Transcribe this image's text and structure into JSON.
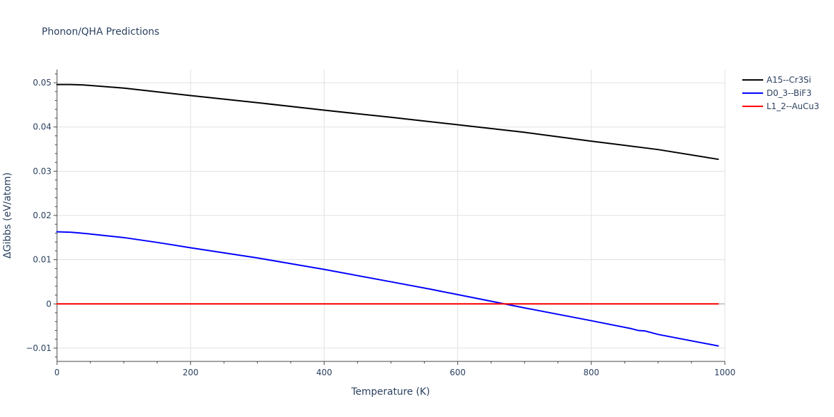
{
  "chart_data": {
    "type": "line",
    "title": "Phonon/QHA Predictions",
    "xlabel": "Temperature (K)",
    "ylabel": "ΔGibbs (eV/atom)",
    "xlim": [
      0,
      1000
    ],
    "ylim": [
      -0.013,
      0.053
    ],
    "grid": true,
    "legend_position": "right",
    "x_ticks": [
      0,
      200,
      400,
      600,
      800,
      1000
    ],
    "x_tick_labels": [
      "0",
      "200",
      "400",
      "600",
      "800",
      "1000"
    ],
    "y_ticks": [
      -0.01,
      0,
      0.01,
      0.02,
      0.03,
      0.04,
      0.05
    ],
    "y_tick_labels": [
      "−0.01",
      "0",
      "0.01",
      "0.02",
      "0.03",
      "0.04",
      "0.05"
    ],
    "series": [
      {
        "name": "A15--Cr3Si",
        "color": "#000000",
        "x": [
          0,
          20,
          40,
          100,
          200,
          300,
          400,
          500,
          600,
          700,
          800,
          900,
          990
        ],
        "y": [
          0.0496,
          0.0496,
          0.0495,
          0.0488,
          0.0471,
          0.0455,
          0.0438,
          0.0422,
          0.0405,
          0.0388,
          0.0368,
          0.0349,
          0.0327
        ]
      },
      {
        "name": "D0_3--BiF3",
        "color": "#0000ff",
        "x": [
          0,
          20,
          30,
          50,
          100,
          150,
          200,
          300,
          400,
          500,
          560,
          600,
          670,
          700,
          800,
          860,
          870,
          880,
          900,
          990
        ],
        "y": [
          0.0163,
          0.0162,
          0.0161,
          0.0158,
          0.015,
          0.0139,
          0.0127,
          0.0104,
          0.0078,
          0.005,
          0.0033,
          0.0021,
          0.0,
          -0.0009,
          -0.0038,
          -0.0056,
          -0.006,
          -0.0061,
          -0.0069,
          -0.0095
        ]
      },
      {
        "name": "L1_2--AuCu3",
        "color": "#ff0000",
        "x": [
          0,
          990
        ],
        "y": [
          0,
          0
        ]
      }
    ]
  }
}
